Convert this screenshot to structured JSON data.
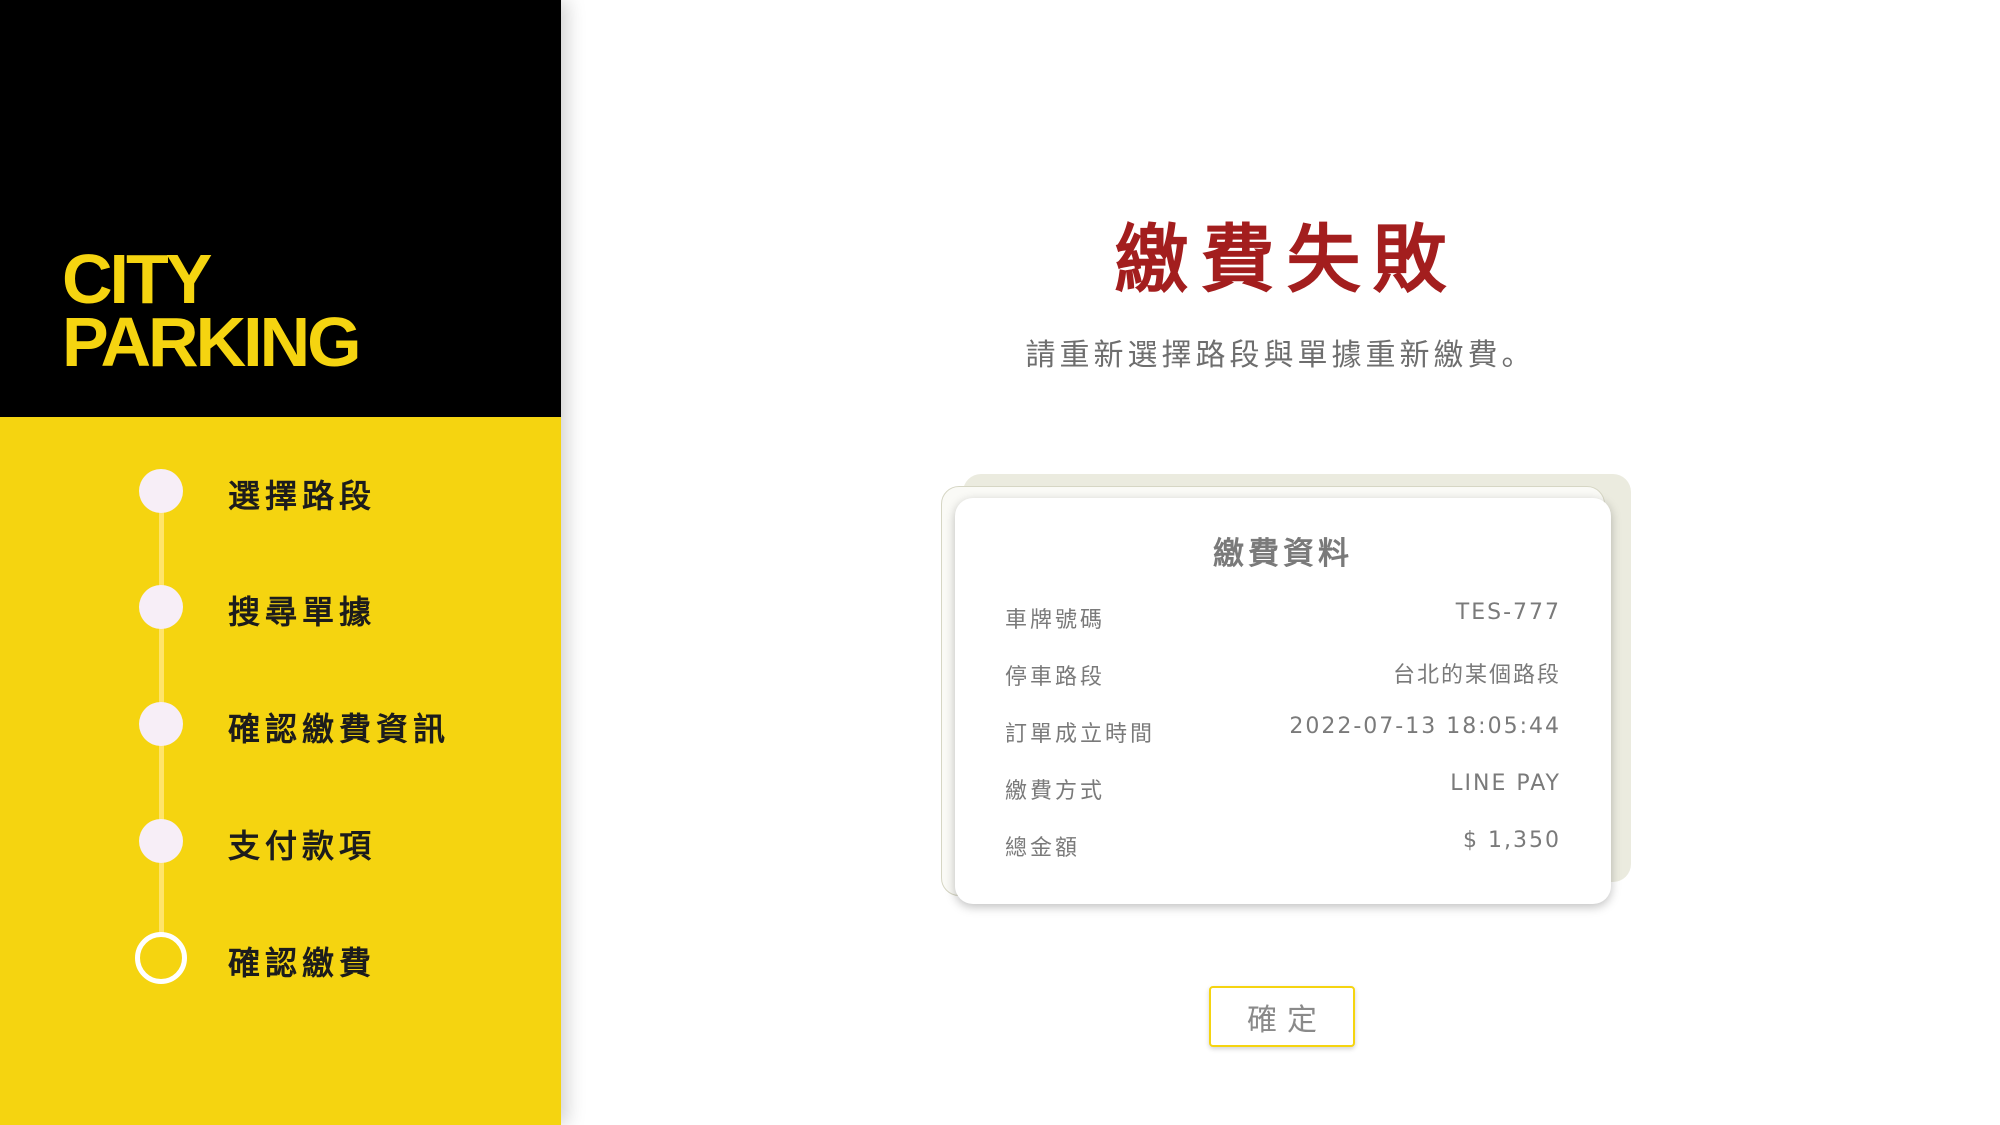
{
  "sidebar": {
    "logo_line1": "CITY",
    "logo_line2": "PARKING",
    "steps": [
      {
        "label": "選擇路段"
      },
      {
        "label": "搜尋單據"
      },
      {
        "label": "確認繳費資訊"
      },
      {
        "label": "支付款項"
      },
      {
        "label": "確認繳費"
      }
    ],
    "current_step": "確認繳費"
  },
  "main": {
    "title": "繳費失敗",
    "subtitle": "請重新選擇路段與單據重新繳費。",
    "card": {
      "title": "繳費資料",
      "rows": [
        {
          "label": "車牌號碼",
          "value": "TES-777"
        },
        {
          "label": "停車路段",
          "value": "台北的某個路段"
        },
        {
          "label": "訂單成立時間",
          "value": "2022-07-13 18:05:44"
        },
        {
          "label": "繳費方式",
          "value": "LINE PAY"
        },
        {
          "label": "總金額",
          "value": "$ 1,350"
        }
      ]
    },
    "confirm_button": "確定"
  },
  "colors": {
    "brand_yellow": "#f5d410",
    "error_red": "#a31e1e",
    "logo_background": "#000000"
  }
}
